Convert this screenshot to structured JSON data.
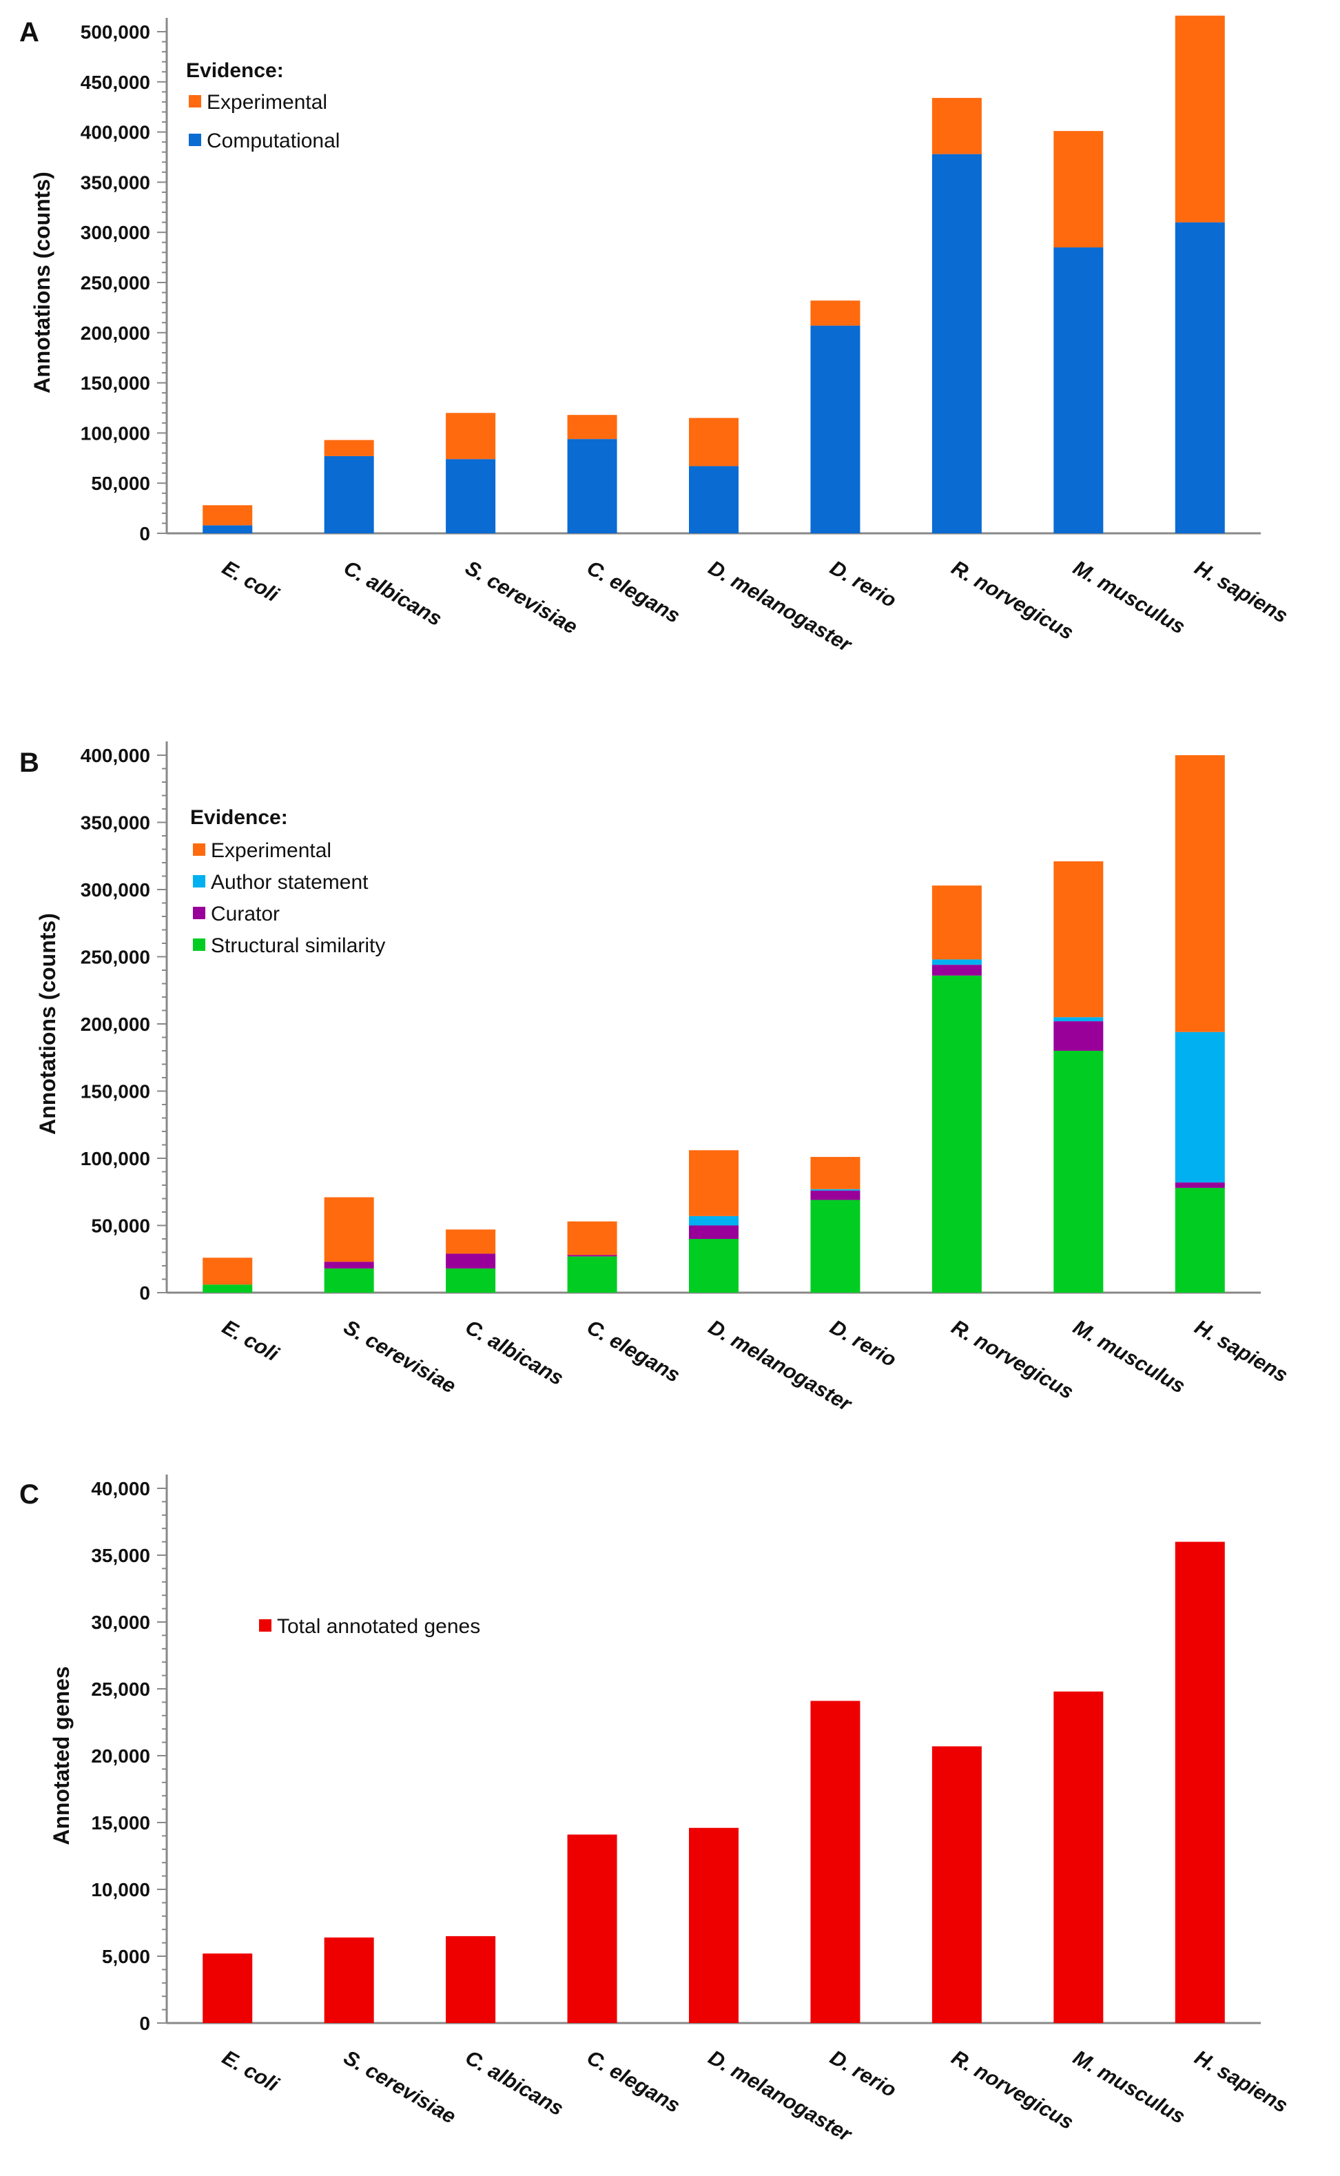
{
  "chart_data": [
    {
      "panel": "A",
      "type": "bar",
      "stacked": true,
      "title": "",
      "ylabel": "Annotations (counts)",
      "xlabel": "",
      "ylim": [
        0,
        500000
      ],
      "yticks": [
        0,
        50000,
        100000,
        150000,
        200000,
        250000,
        300000,
        350000,
        400000,
        450000,
        500000
      ],
      "ytick_labels": [
        "0",
        "50,000",
        "100,000",
        "150,000",
        "200,000",
        "250,000",
        "300,000",
        "350,000",
        "400,000",
        "450,000",
        "500,000"
      ],
      "categories": [
        "E. coli",
        "C. albicans",
        "S. cerevisiae",
        "C. elegans",
        "D. melanogaster",
        "D. rerio",
        "R. norvegicus",
        "M. musculus",
        "H. sapiens"
      ],
      "legend_title": "Evidence:",
      "legend_position": "top-left",
      "series": [
        {
          "name": "Computational",
          "color": "#0a6bd3",
          "values": [
            8000,
            77000,
            74000,
            94000,
            67000,
            207000,
            378000,
            285000,
            310000
          ]
        },
        {
          "name": "Experimental",
          "color": "#ff6a0e",
          "values": [
            20000,
            16000,
            46000,
            24000,
            48000,
            25000,
            56000,
            116000,
            206000
          ]
        }
      ],
      "legend_order": [
        "Experimental",
        "Computational"
      ]
    },
    {
      "panel": "B",
      "type": "bar",
      "stacked": true,
      "title": "",
      "ylabel": "Annotations (counts)",
      "xlabel": "",
      "ylim": [
        0,
        400000
      ],
      "yticks": [
        0,
        50000,
        100000,
        150000,
        200000,
        250000,
        300000,
        350000,
        400000
      ],
      "ytick_labels": [
        "0",
        "50,000",
        "100,000",
        "150,000",
        "200,000",
        "250,000",
        "300,000",
        "350,000",
        "400,000"
      ],
      "categories": [
        "E. coli",
        "S. cerevisiae",
        "C. albicans",
        "C. elegans",
        "D. melanogaster",
        "D. rerio",
        "R. norvegicus",
        "M. musculus",
        "H. sapiens"
      ],
      "legend_title": "Evidence:",
      "legend_position": "top-left",
      "series": [
        {
          "name": "Structural similarity",
          "color": "#00cc22",
          "values": [
            6000,
            18000,
            18000,
            27000,
            40000,
            69000,
            236000,
            180000,
            78000
          ]
        },
        {
          "name": "Curator",
          "color": "#990099",
          "values": [
            0,
            5000,
            11000,
            1000,
            10000,
            7000,
            8000,
            22000,
            4000
          ]
        },
        {
          "name": "Author statement",
          "color": "#00b0f0",
          "values": [
            0,
            0,
            0,
            0,
            7000,
            1000,
            4000,
            3000,
            112000
          ]
        },
        {
          "name": "Experimental",
          "color": "#ff6a0e",
          "values": [
            20000,
            48000,
            18000,
            25000,
            49000,
            24000,
            55000,
            116000,
            206000
          ]
        }
      ],
      "legend_order": [
        "Experimental",
        "Author statement",
        "Curator",
        "Structural similarity"
      ]
    },
    {
      "panel": "C",
      "type": "bar",
      "stacked": false,
      "title": "",
      "ylabel": "Annotated genes",
      "xlabel": "",
      "ylim": [
        0,
        40000
      ],
      "yticks": [
        0,
        5000,
        10000,
        15000,
        20000,
        25000,
        30000,
        35000,
        40000
      ],
      "ytick_labels": [
        "0",
        "5,000",
        "10,000",
        "15,000",
        "20,000",
        "25,000",
        "30,000",
        "35,000",
        "40,000"
      ],
      "categories": [
        "E. coli",
        "S. cerevisiae",
        "C. albicans",
        "C. elegans",
        "D. melanogaster",
        "D. rerio",
        "R. norvegicus",
        "M. musculus",
        "H. sapiens"
      ],
      "legend_title": "",
      "legend_position": "upper-left",
      "series": [
        {
          "name": "Total annotated genes",
          "color": "#ee0000",
          "values": [
            5200,
            6400,
            6500,
            14100,
            14600,
            24100,
            20700,
            24800,
            36000
          ]
        }
      ],
      "legend_order": [
        "Total annotated genes"
      ]
    }
  ]
}
